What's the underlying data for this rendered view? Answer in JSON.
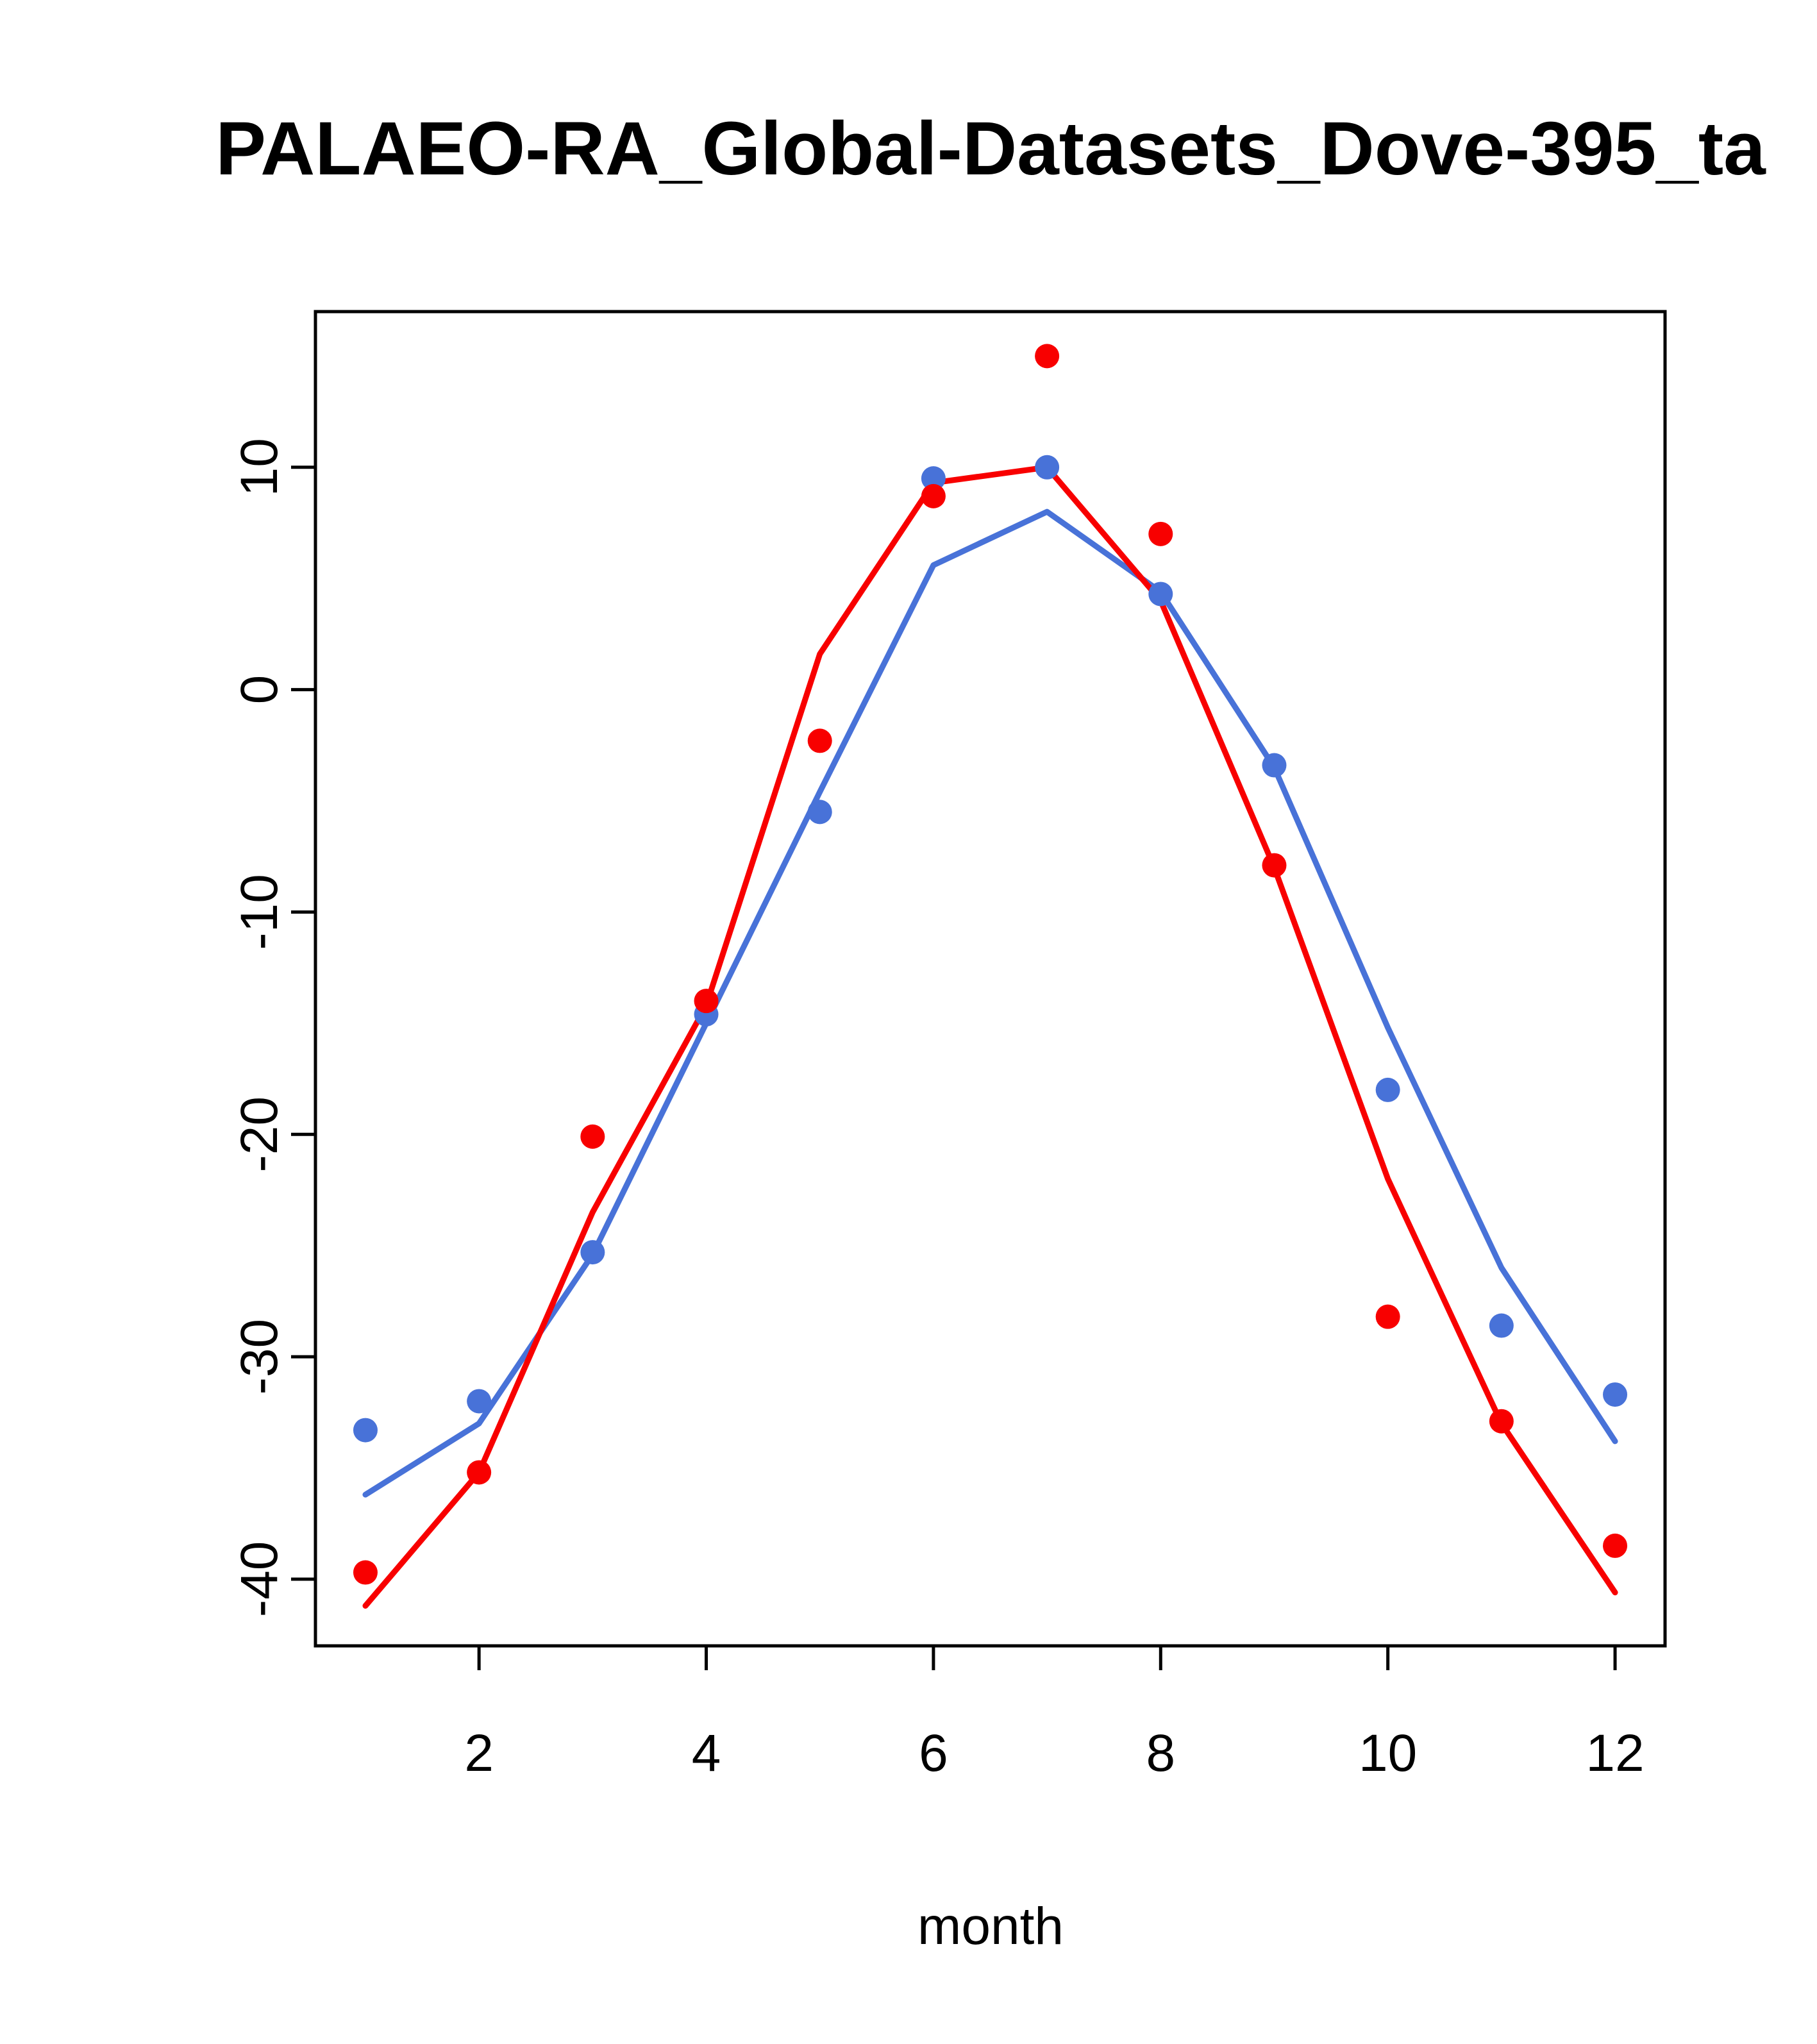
{
  "chart_data": {
    "type": "line",
    "title": "PALAEO-RA_Global-Datasets_Dove-395_ta",
    "xlabel": "month",
    "ylabel": "",
    "x": [
      1,
      2,
      3,
      4,
      5,
      6,
      7,
      8,
      9,
      10,
      11,
      12
    ],
    "xlim": [
      0.56,
      12.44
    ],
    "ylim": [
      -43,
      17
    ],
    "x_ticks": [
      2,
      4,
      6,
      8,
      10,
      12
    ],
    "y_ticks": [
      10,
      0,
      -10,
      -20,
      -30,
      -40
    ],
    "grid": false,
    "legend": "none",
    "colors": {
      "red": "#f80000",
      "blue": "#4872d8"
    },
    "series": [
      {
        "name": "blue-line",
        "style": "line",
        "color_key": "blue",
        "values": [
          -36.2,
          -33.0,
          -25.4,
          -15.0,
          -4.6,
          5.6,
          8.0,
          4.4,
          -3.5,
          -15.2,
          -26.0,
          -33.8
        ]
      },
      {
        "name": "red-line",
        "style": "line",
        "color_key": "red",
        "values": [
          -41.2,
          -35.2,
          -23.5,
          -14.2,
          1.6,
          9.3,
          10.0,
          4.0,
          -8.0,
          -22.0,
          -33.0,
          -40.6
        ]
      },
      {
        "name": "blue-points",
        "style": "points",
        "color_key": "blue",
        "values": [
          -33.3,
          -32.0,
          -25.3,
          -14.6,
          -5.5,
          9.5,
          10.0,
          4.3,
          -3.4,
          -18.0,
          -28.6,
          -31.7
        ]
      },
      {
        "name": "red-points",
        "style": "points",
        "color_key": "red",
        "values": [
          -39.7,
          -35.2,
          -20.1,
          -14.0,
          -2.3,
          8.7,
          15.0,
          7.0,
          -7.9,
          -28.2,
          -32.9,
          -38.5
        ]
      }
    ]
  }
}
